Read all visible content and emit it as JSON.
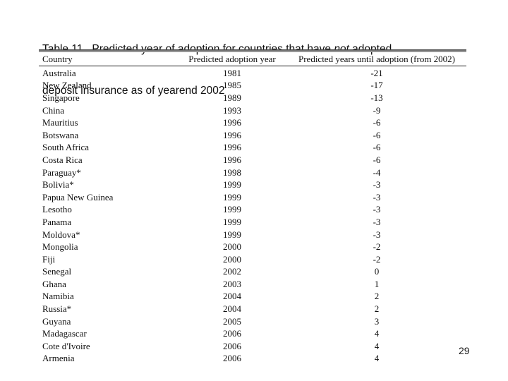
{
  "slide": {
    "background_color": "#ffffff",
    "text_color": "#0f0f0f",
    "title": {
      "line1_prefix": "Table 11.  Predicted year of adoption for countries that have ",
      "line1_italic": "not",
      "line1_suffix": " adopted",
      "line2": "deposit insurance as of yearend 2002"
    },
    "page_number": "29"
  },
  "table": {
    "rule_colors": {
      "thick_top": "#4a4a4a",
      "thick_body": "#979797",
      "thin": "#1c1c1c"
    },
    "columns": [
      "Country",
      "Predicted adoption year",
      "Predicted years until adoption (from 2002)"
    ],
    "rows": [
      [
        "Australia",
        "1981",
        "-21"
      ],
      [
        "New Zealand",
        "1985",
        "-17"
      ],
      [
        "Singapore",
        "1989",
        "-13"
      ],
      [
        "China",
        "1993",
        "-9"
      ],
      [
        "Mauritius",
        "1996",
        "-6"
      ],
      [
        "Botswana",
        "1996",
        "-6"
      ],
      [
        "South Africa",
        "1996",
        "-6"
      ],
      [
        "Costa Rica",
        "1996",
        "-6"
      ],
      [
        "Paraguay*",
        "1998",
        "-4"
      ],
      [
        "Bolivia*",
        "1999",
        "-3"
      ],
      [
        "Papua New Guinea",
        "1999",
        "-3"
      ],
      [
        "Lesotho",
        "1999",
        "-3"
      ],
      [
        "Panama",
        "1999",
        "-3"
      ],
      [
        "Moldova*",
        "1999",
        "-3"
      ],
      [
        "Mongolia",
        "2000",
        "-2"
      ],
      [
        "Fiji",
        "2000",
        "-2"
      ],
      [
        "Senegal",
        "2002",
        "0"
      ],
      [
        "Ghana",
        "2003",
        "1"
      ],
      [
        "Namibia",
        "2004",
        "2"
      ],
      [
        "Russia*",
        "2004",
        "2"
      ],
      [
        "Guyana",
        "2005",
        "3"
      ],
      [
        "Madagascar",
        "2006",
        "4"
      ],
      [
        "Cote d'Ivoire",
        "2006",
        "4"
      ],
      [
        "Armenia",
        "2006",
        "4"
      ]
    ]
  }
}
